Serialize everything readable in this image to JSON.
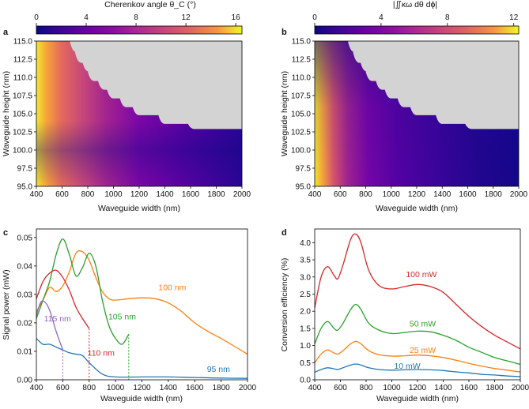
{
  "panels": {
    "a": {
      "letter": "a"
    },
    "b": {
      "letter": "b"
    },
    "c": {
      "letter": "c"
    },
    "d": {
      "letter": "d"
    }
  },
  "chart_data": [
    {
      "id": "a",
      "type": "heatmap",
      "colorbar_title": "Cherenkov angle θ_C (°)",
      "colorbar_range": [
        0,
        16.5
      ],
      "colorbar_ticks": [
        "0",
        "4",
        "8",
        "12",
        "16"
      ],
      "xlabel": "Waveguide width (nm)",
      "ylabel": "Waveguide height (nm)",
      "xlim": [
        400,
        2000
      ],
      "ylim": [
        95,
        115
      ],
      "xticks": [
        "400",
        "600",
        "800",
        "1000",
        "1200",
        "1400",
        "1600",
        "1800",
        "2000"
      ],
      "yticks": [
        "95.0",
        "97.5",
        "100.0",
        "102.5",
        "105.0",
        "107.5",
        "110.0",
        "112.5",
        "115.0"
      ],
      "invalid_region_boundary": [
        [
          660,
          115
        ],
        [
          700,
          113.5
        ],
        [
          760,
          112
        ],
        [
          800,
          110.8
        ],
        [
          880,
          109.5
        ],
        [
          950,
          108.3
        ],
        [
          1050,
          107.1
        ],
        [
          1150,
          105.9
        ],
        [
          1350,
          104.8
        ],
        [
          1580,
          103.6
        ],
        [
          1650,
          102.9
        ],
        [
          2000,
          102.9
        ]
      ],
      "max_value_corner": "low width, low height"
    },
    {
      "id": "b",
      "type": "heatmap",
      "colorbar_title": "|∬κω dθ dϕ|",
      "colorbar_range": [
        0,
        12.3
      ],
      "colorbar_ticks": [
        "0",
        "4",
        "8",
        "12"
      ],
      "xlabel": "Waveguide width (nm)",
      "ylabel": "Waveguide height (nm)",
      "xlim": [
        400,
        2000
      ],
      "ylim": [
        95,
        115
      ],
      "xticks": [
        "400",
        "600",
        "800",
        "1000",
        "1200",
        "1400",
        "1600",
        "1800",
        "2000"
      ],
      "yticks": [
        "95.0",
        "97.5",
        "100.0",
        "102.5",
        "105.0",
        "107.5",
        "110.0",
        "112.5",
        "115.0"
      ],
      "invalid_region_boundary": [
        [
          660,
          115
        ],
        [
          700,
          113.5
        ],
        [
          760,
          112
        ],
        [
          800,
          110.8
        ],
        [
          880,
          109.5
        ],
        [
          950,
          108.3
        ],
        [
          1050,
          107.1
        ],
        [
          1150,
          105.9
        ],
        [
          1350,
          104.8
        ],
        [
          1580,
          103.6
        ],
        [
          1650,
          102.9
        ],
        [
          2000,
          102.9
        ]
      ],
      "max_value_corner": "low width"
    },
    {
      "id": "c",
      "type": "line",
      "xlabel": "Waveguide width (nm)",
      "ylabel": "Signal power (mW)",
      "xlim": [
        400,
        2000
      ],
      "ylim": [
        0,
        0.053
      ],
      "xticks": [
        "400",
        "600",
        "800",
        "1000",
        "1200",
        "1400",
        "1600",
        "1800",
        "2000"
      ],
      "yticks": [
        "0.00",
        "0.01",
        "0.02",
        "0.03",
        "0.04",
        "0.05"
      ],
      "series": [
        {
          "name": "95 nm",
          "color": "#1f77b4",
          "cutoff": null,
          "x": [
            400,
            450,
            500,
            550,
            600,
            650,
            700,
            750,
            800,
            900,
            1000,
            1200,
            1400,
            1600,
            1800,
            2000
          ],
          "y": [
            0.0145,
            0.0125,
            0.0125,
            0.0115,
            0.0105,
            0.0095,
            0.009,
            0.0085,
            0.006,
            0.002,
            0.001,
            0.001,
            0.001,
            0.0008,
            0.0006,
            0.0005
          ]
        },
        {
          "name": "100 nm",
          "color": "#ff7f0e",
          "cutoff": null,
          "x": [
            400,
            450,
            500,
            550,
            600,
            650,
            700,
            750,
            800,
            850,
            900,
            950,
            1000,
            1100,
            1200,
            1300,
            1400,
            1500,
            1600,
            1700,
            1800,
            1900,
            2000
          ],
          "y": [
            0.024,
            0.028,
            0.0325,
            0.031,
            0.033,
            0.038,
            0.0445,
            0.045,
            0.042,
            0.036,
            0.031,
            0.0285,
            0.028,
            0.0285,
            0.0288,
            0.0285,
            0.027,
            0.024,
            0.02,
            0.017,
            0.0145,
            0.0118,
            0.009
          ]
        },
        {
          "name": "105 nm",
          "color": "#2ca02c",
          "cutoff": 1100,
          "x": [
            400,
            450,
            500,
            550,
            600,
            650,
            700,
            750,
            800,
            850,
            900,
            950,
            1000,
            1050,
            1100
          ],
          "y": [
            0.0215,
            0.028,
            0.0345,
            0.044,
            0.0495,
            0.044,
            0.0365,
            0.0395,
            0.0445,
            0.04,
            0.028,
            0.019,
            0.0145,
            0.0125,
            0.016
          ]
        },
        {
          "name": "110 nm",
          "color": "#d62728",
          "cutoff": 800,
          "x": [
            400,
            450,
            500,
            550,
            600,
            650,
            700,
            750,
            800
          ],
          "y": [
            0.0285,
            0.0345,
            0.0375,
            0.0385,
            0.036,
            0.0315,
            0.0255,
            0.0215,
            0.018
          ]
        },
        {
          "name": "115 nm",
          "color": "#9467bd",
          "cutoff": 600,
          "x": [
            400,
            430,
            460,
            500,
            550,
            600
          ],
          "y": [
            0.0225,
            0.027,
            0.0275,
            0.0245,
            0.017,
            0.0105
          ]
        }
      ]
    },
    {
      "id": "d",
      "type": "line",
      "xlabel": "Waveguide width (nm)",
      "ylabel": "Conversion efficiency (%)",
      "xlim": [
        400,
        2000
      ],
      "ylim": [
        0,
        4.4
      ],
      "xticks": [
        "400",
        "600",
        "800",
        "1000",
        "1200",
        "1400",
        "1600",
        "1800",
        "2000"
      ],
      "yticks": [
        "0.0",
        "0.5",
        "1.0",
        "1.5",
        "2.0",
        "2.5",
        "3.0",
        "3.5",
        "4.0"
      ],
      "series": [
        {
          "name": "100 mW",
          "color": "#d62728",
          "x": [
            400,
            450,
            500,
            550,
            580,
            620,
            680,
            720,
            760,
            820,
            900,
            1000,
            1100,
            1200,
            1300,
            1400,
            1500,
            1600,
            1700,
            1800,
            1900,
            2000
          ],
          "y": [
            2.1,
            3.0,
            3.3,
            3.05,
            2.95,
            3.35,
            4.1,
            4.25,
            4.0,
            3.2,
            2.75,
            2.65,
            2.72,
            2.78,
            2.72,
            2.55,
            2.2,
            1.85,
            1.55,
            1.3,
            1.1,
            0.9
          ]
        },
        {
          "name": "50 mW",
          "color": "#2ca02c",
          "x": [
            400,
            450,
            500,
            550,
            580,
            620,
            680,
            720,
            760,
            820,
            900,
            1000,
            1100,
            1200,
            1300,
            1400,
            1500,
            1600,
            1700,
            1800,
            1900,
            2000
          ],
          "y": [
            1.05,
            1.5,
            1.7,
            1.5,
            1.45,
            1.65,
            2.05,
            2.2,
            2.05,
            1.65,
            1.45,
            1.35,
            1.38,
            1.42,
            1.4,
            1.3,
            1.15,
            0.95,
            0.8,
            0.65,
            0.55,
            0.45
          ]
        },
        {
          "name": "25 mW",
          "color": "#ff7f0e",
          "x": [
            400,
            450,
            500,
            550,
            580,
            620,
            680,
            720,
            760,
            820,
            900,
            1000,
            1100,
            1200,
            1300,
            1400,
            1500,
            1600,
            1700,
            1800,
            1900,
            2000
          ],
          "y": [
            0.5,
            0.75,
            0.87,
            0.78,
            0.75,
            0.85,
            1.05,
            1.12,
            1.05,
            0.85,
            0.73,
            0.69,
            0.7,
            0.72,
            0.7,
            0.65,
            0.57,
            0.48,
            0.4,
            0.33,
            0.28,
            0.23
          ]
        },
        {
          "name": "10 mW",
          "color": "#1f77b4",
          "x": [
            400,
            450,
            500,
            550,
            580,
            620,
            680,
            720,
            760,
            820,
            900,
            1000,
            1100,
            1200,
            1300,
            1400,
            1500,
            1600,
            1700,
            1800,
            1900,
            2000
          ],
          "y": [
            0.22,
            0.3,
            0.35,
            0.32,
            0.3,
            0.35,
            0.43,
            0.46,
            0.43,
            0.35,
            0.3,
            0.28,
            0.29,
            0.3,
            0.29,
            0.27,
            0.23,
            0.2,
            0.16,
            0.14,
            0.11,
            0.09
          ]
        }
      ]
    }
  ]
}
